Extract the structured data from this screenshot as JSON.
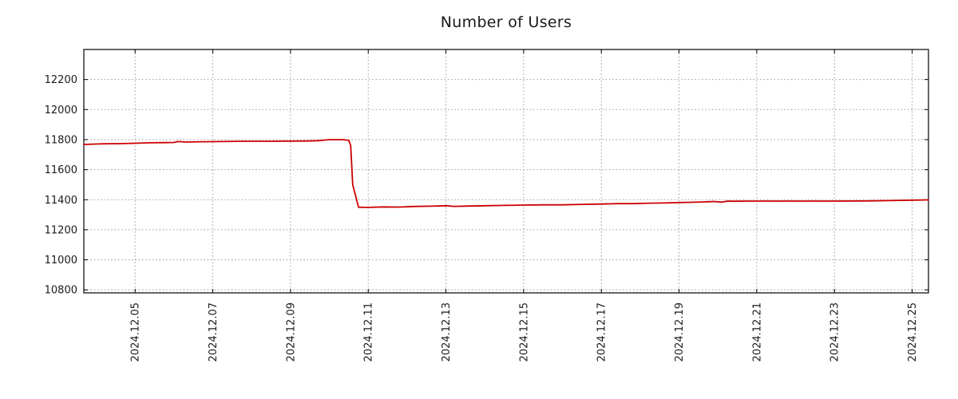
{
  "title": "Number of Users",
  "colors": {
    "line": "#cc0000",
    "grid": "#999999",
    "frame": "#000000",
    "text": "#1a1a1a",
    "background": "#ffffff"
  },
  "chart_data": {
    "type": "line",
    "title": "Number of Users",
    "xlabel": "",
    "ylabel": "",
    "legend": "none",
    "grid": "dotted",
    "xlim": [
      3.68,
      25.42
    ],
    "ylim": [
      10780,
      12400
    ],
    "y_ticks": [
      10800,
      11000,
      11200,
      11400,
      11600,
      11800,
      12000,
      12200
    ],
    "x_ticks": [
      5,
      7,
      9,
      11,
      13,
      15,
      17,
      19,
      21,
      23,
      25
    ],
    "x_tick_labels": [
      "2024.12.05",
      "2024.12.07",
      "2024.12.09",
      "2024.12.11",
      "2024.12.13",
      "2024.12.15",
      "2024.12.17",
      "2024.12.19",
      "2024.12.21",
      "2024.12.23",
      "2024.12.25"
    ],
    "x_unit": "date (December 2024, day number)",
    "series": [
      {
        "name": "Number of Users",
        "color": "#cc0000",
        "x": [
          3.68,
          4.2,
          4.6,
          5.0,
          5.4,
          5.8,
          6.0,
          6.1,
          6.3,
          6.8,
          7.2,
          7.8,
          8.4,
          9.0,
          9.4,
          9.7,
          10.0,
          10.35,
          10.5,
          10.55,
          10.6,
          10.75,
          11.0,
          11.4,
          11.8,
          12.2,
          12.6,
          13.0,
          13.2,
          13.6,
          14.0,
          14.5,
          15.0,
          15.5,
          16.0,
          16.5,
          17.0,
          17.4,
          17.8,
          18.2,
          18.6,
          19.0,
          19.3,
          19.6,
          19.9,
          20.1,
          20.25,
          20.4,
          20.8,
          21.5,
          22.2,
          23.0,
          23.8,
          24.4,
          25.0,
          25.42
        ],
        "y": [
          11768,
          11772,
          11773,
          11776,
          11779,
          11780,
          11781,
          11787,
          11784,
          11786,
          11787,
          11789,
          11789,
          11790,
          11791,
          11793,
          11800,
          11800,
          11795,
          11760,
          11500,
          11350,
          11349,
          11352,
          11351,
          11355,
          11357,
          11360,
          11356,
          11358,
          11360,
          11362,
          11364,
          11366,
          11366,
          11369,
          11371,
          11374,
          11374,
          11377,
          11378,
          11381,
          11383,
          11385,
          11388,
          11384,
          11391,
          11390,
          11391,
          11391,
          11391,
          11391,
          11392,
          11394,
          11397,
          11399
        ]
      }
    ]
  }
}
